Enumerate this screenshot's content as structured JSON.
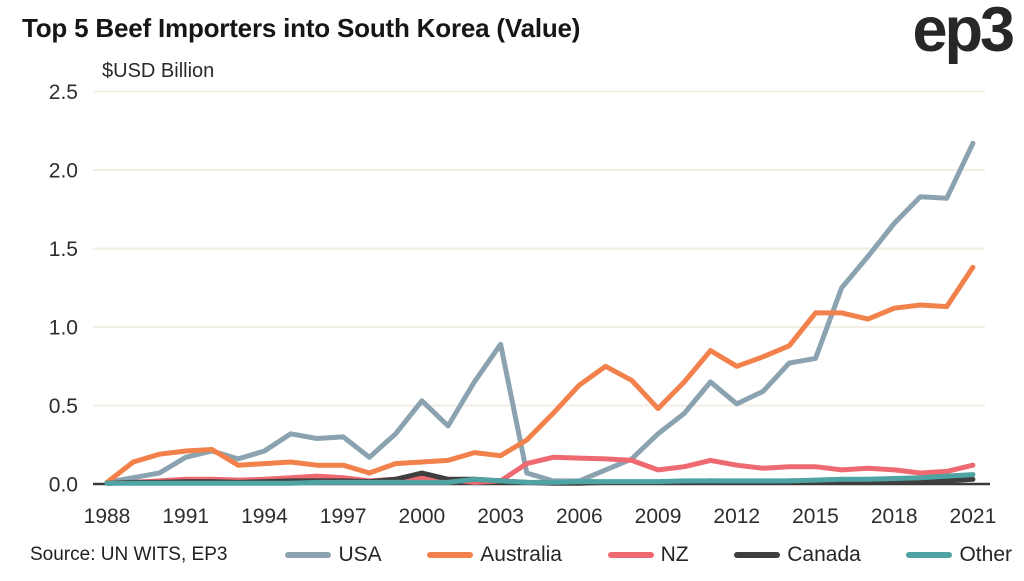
{
  "header": {
    "title": "Top 5 Beef Importers into South Korea (Value)",
    "logo_text": "ep3"
  },
  "footer": {
    "source": "Source: UN WITS, EP3"
  },
  "colors": {
    "gridline": "#f0efe3",
    "axis": "#3a3a3a",
    "background": "#ffffff",
    "title_text": "#161616"
  },
  "chart_data": {
    "type": "line",
    "title": "Top 5 Beef Importers into South Korea (Value)",
    "unit_label": "$USD Billion",
    "xlabel": "",
    "ylabel": "$USD Billion",
    "xlim": [
      1988,
      2021
    ],
    "ylim": [
      0,
      2.5
    ],
    "grid": "horizontal",
    "legend_position": "bottom",
    "x": [
      1988,
      1989,
      1990,
      1991,
      1992,
      1993,
      1994,
      1995,
      1996,
      1997,
      1998,
      1999,
      2000,
      2001,
      2002,
      2003,
      2004,
      2005,
      2006,
      2007,
      2008,
      2009,
      2010,
      2011,
      2012,
      2013,
      2014,
      2015,
      2016,
      2017,
      2018,
      2019,
      2020,
      2021
    ],
    "x_ticks": [
      1988,
      1991,
      1994,
      1997,
      2000,
      2003,
      2006,
      2009,
      2012,
      2015,
      2018,
      2021
    ],
    "y_ticks": [
      0.0,
      0.5,
      1.0,
      1.5,
      2.0,
      2.5
    ],
    "y_tick_labels": [
      "0.0",
      "0.5",
      "1.0",
      "1.5",
      "2.0",
      "2.5"
    ],
    "series": [
      {
        "name": "USA",
        "color": "#8ba3b0",
        "values": [
          0.01,
          0.04,
          0.07,
          0.17,
          0.21,
          0.16,
          0.21,
          0.32,
          0.29,
          0.3,
          0.17,
          0.32,
          0.53,
          0.37,
          0.65,
          0.89,
          0.07,
          0.02,
          0.02,
          0.09,
          0.16,
          0.32,
          0.45,
          0.65,
          0.51,
          0.59,
          0.77,
          0.8,
          1.25,
          1.45,
          1.66,
          1.83,
          1.82,
          2.17
        ]
      },
      {
        "name": "Australia",
        "color": "#f2814b",
        "values": [
          0.01,
          0.14,
          0.19,
          0.21,
          0.22,
          0.12,
          0.13,
          0.14,
          0.12,
          0.12,
          0.07,
          0.13,
          0.14,
          0.15,
          0.2,
          0.18,
          0.28,
          0.45,
          0.63,
          0.75,
          0.66,
          0.48,
          0.65,
          0.85,
          0.75,
          0.81,
          0.88,
          1.09,
          1.09,
          1.05,
          1.12,
          1.14,
          1.13,
          1.38
        ]
      },
      {
        "name": "NZ",
        "color": "#ee6a70",
        "values": [
          0.005,
          0.01,
          0.02,
          0.03,
          0.03,
          0.025,
          0.03,
          0.04,
          0.05,
          0.04,
          0.02,
          0.03,
          0.04,
          0.03,
          0.01,
          0.02,
          0.13,
          0.17,
          0.165,
          0.16,
          0.15,
          0.09,
          0.11,
          0.15,
          0.12,
          0.1,
          0.11,
          0.11,
          0.09,
          0.1,
          0.09,
          0.07,
          0.08,
          0.12
        ]
      },
      {
        "name": "Canada",
        "color": "#3f3f3f",
        "values": [
          0.005,
          0.01,
          0.01,
          0.015,
          0.015,
          0.01,
          0.015,
          0.02,
          0.02,
          0.02,
          0.015,
          0.03,
          0.07,
          0.03,
          0.03,
          0.02,
          0.01,
          0.005,
          0.005,
          0.01,
          0.01,
          0.01,
          0.015,
          0.02,
          0.015,
          0.015,
          0.02,
          0.02,
          0.02,
          0.02,
          0.02,
          0.02,
          0.02,
          0.03
        ]
      },
      {
        "name": "Other",
        "color": "#4fa3a3",
        "values": [
          0.005,
          0.005,
          0.005,
          0.005,
          0.005,
          0.005,
          0.005,
          0.005,
          0.01,
          0.01,
          0.01,
          0.01,
          0.01,
          0.01,
          0.03,
          0.02,
          0.01,
          0.01,
          0.015,
          0.015,
          0.015,
          0.015,
          0.02,
          0.02,
          0.02,
          0.02,
          0.02,
          0.025,
          0.03,
          0.03,
          0.035,
          0.04,
          0.05,
          0.06
        ]
      }
    ]
  }
}
